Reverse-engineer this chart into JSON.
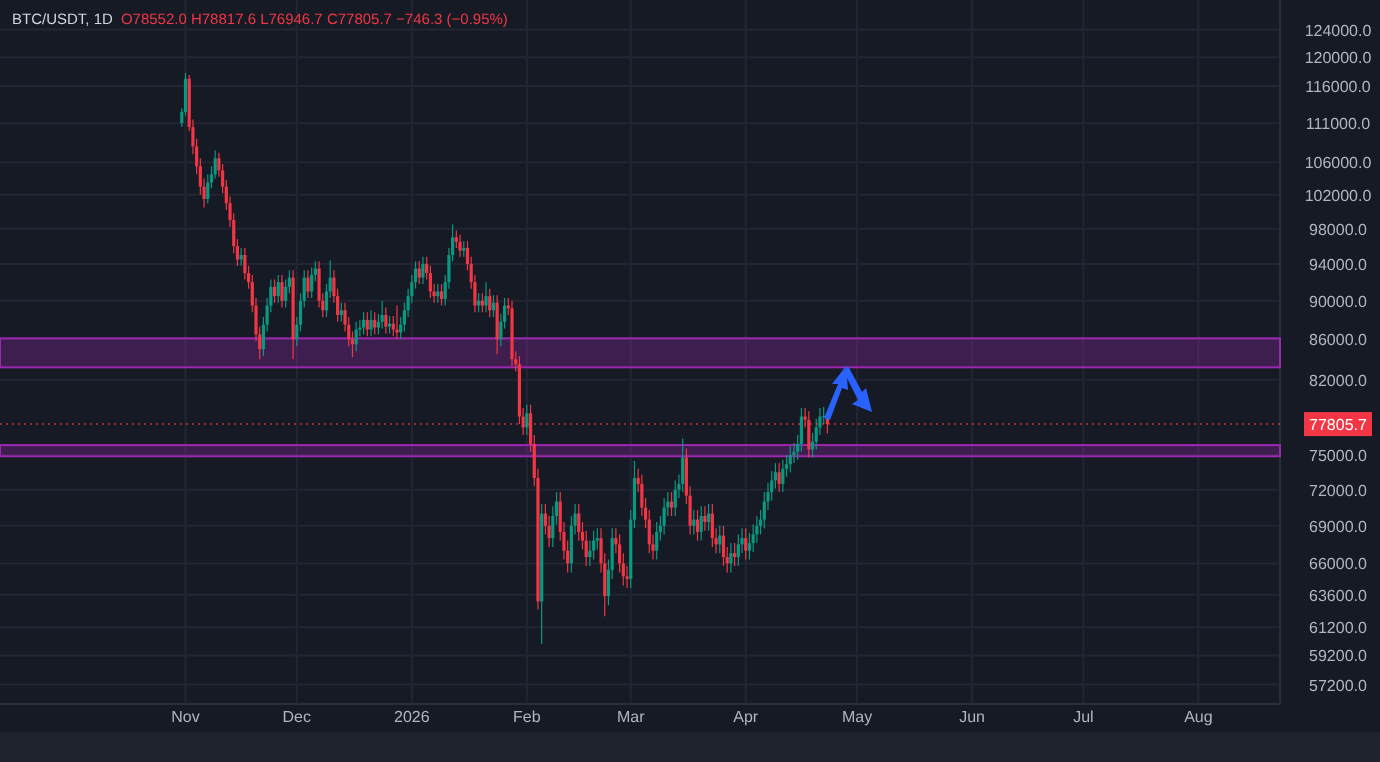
{
  "chart_data": {
    "type": "candlestick",
    "title": "BTC/USDT, 1D",
    "subtitle": "O78552.0 H78817.6 L76946.7 C77805.7 −746.3 (−0.95%)",
    "log": true,
    "grid": true,
    "xlim": [
      "2025-09-12",
      "2026-08-23"
    ],
    "xticks": [
      {
        "value": "2025-11-01",
        "label": "Nov"
      },
      {
        "value": "2025-12-01",
        "label": "Dec"
      },
      {
        "value": "2026-01-01",
        "label": "2026"
      },
      {
        "value": "2026-02-01",
        "label": "Feb"
      },
      {
        "value": "2026-03-01",
        "label": "Mar"
      },
      {
        "value": "2026-04-01",
        "label": "Apr"
      },
      {
        "value": "2026-05-01",
        "label": "May"
      },
      {
        "value": "2026-06-01",
        "label": "Jun"
      },
      {
        "value": "2026-07-01",
        "label": "Jul"
      },
      {
        "value": "2026-08-01",
        "label": "Aug"
      }
    ],
    "ylim": [
      55900,
      128400
    ],
    "yticks": [
      {
        "value": 124000,
        "label": "124000.0"
      },
      {
        "value": 120000,
        "label": "120000.0"
      },
      {
        "value": 116000,
        "label": "116000.0"
      },
      {
        "value": 111000,
        "label": "111000.0"
      },
      {
        "value": 106000,
        "label": "106000.0"
      },
      {
        "value": 102000,
        "label": "102000.0"
      },
      {
        "value": 98000,
        "label": "98000.0"
      },
      {
        "value": 94000,
        "label": "94000.0"
      },
      {
        "value": 90000,
        "label": "90000.0"
      },
      {
        "value": 86000,
        "label": "86000.0"
      },
      {
        "value": 82000,
        "label": "82000.0"
      },
      {
        "value": 75000,
        "label": "75000.0"
      },
      {
        "value": 72000,
        "label": "72000.0"
      },
      {
        "value": 69000,
        "label": "69000.0"
      },
      {
        "value": 66000,
        "label": "66000.0"
      },
      {
        "value": 63600,
        "label": "63600.0"
      },
      {
        "value": 61200,
        "label": "61200.0"
      },
      {
        "value": 59200,
        "label": "59200.0"
      },
      {
        "value": 57200,
        "label": "57200.0"
      }
    ],
    "bands": [
      {
        "axis": "y",
        "from": 83200,
        "to": 86100,
        "color": "#9c27b0"
      },
      {
        "axis": "y",
        "from": 74900,
        "to": 75900,
        "color": "#9c27b0"
      }
    ],
    "ref_lines": [
      {
        "axis": "y",
        "value": 77805.7,
        "label": "77805.7",
        "color": "#f23645",
        "line_style": "dotted"
      }
    ],
    "x": [
      "2025-10-31",
      "2025-11-01",
      "2025-11-02",
      "2025-11-03",
      "2025-11-04",
      "2025-11-05",
      "2025-11-06",
      "2025-11-07",
      "2025-11-08",
      "2025-11-09",
      "2025-11-10",
      "2025-11-11",
      "2025-11-12",
      "2025-11-13",
      "2025-11-14",
      "2025-11-15",
      "2025-11-16",
      "2025-11-17",
      "2025-11-18",
      "2025-11-19",
      "2025-11-20",
      "2025-11-21",
      "2025-11-22",
      "2025-11-23",
      "2025-11-24",
      "2025-11-25",
      "2025-11-26",
      "2025-11-27",
      "2025-11-28",
      "2025-11-29",
      "2025-11-30",
      "2025-12-01",
      "2025-12-02",
      "2025-12-03",
      "2025-12-04",
      "2025-12-05",
      "2025-12-06",
      "2025-12-07",
      "2025-12-08",
      "2025-12-09",
      "2025-12-10",
      "2025-12-11",
      "2025-12-12",
      "2025-12-13",
      "2025-12-14",
      "2025-12-15",
      "2025-12-16",
      "2025-12-17",
      "2025-12-18",
      "2025-12-19",
      "2025-12-20",
      "2025-12-21",
      "2025-12-22",
      "2025-12-23",
      "2025-12-24",
      "2025-12-25",
      "2025-12-26",
      "2025-12-27",
      "2025-12-28",
      "2025-12-29",
      "2025-12-30",
      "2025-12-31",
      "2026-01-01",
      "2026-01-02",
      "2026-01-03",
      "2026-01-04",
      "2026-01-05",
      "2026-01-06",
      "2026-01-07",
      "2026-01-08",
      "2026-01-09",
      "2026-01-10",
      "2026-01-11",
      "2026-01-12",
      "2026-01-13",
      "2026-01-14",
      "2026-01-15",
      "2026-01-16",
      "2026-01-17",
      "2026-01-18",
      "2026-01-19",
      "2026-01-20",
      "2026-01-21",
      "2026-01-22",
      "2026-01-23",
      "2026-01-24",
      "2026-01-25",
      "2026-01-26",
      "2026-01-27",
      "2026-01-28",
      "2026-01-29",
      "2026-01-30",
      "2026-01-31",
      "2026-02-01",
      "2026-02-02",
      "2026-02-03",
      "2026-02-04",
      "2026-02-05",
      "2026-02-06",
      "2026-02-07",
      "2026-02-08",
      "2026-02-09",
      "2026-02-10",
      "2026-02-11",
      "2026-02-12",
      "2026-02-13",
      "2026-02-14",
      "2026-02-15",
      "2026-02-16",
      "2026-02-17",
      "2026-02-18",
      "2026-02-19",
      "2026-02-20",
      "2026-02-21",
      "2026-02-22",
      "2026-02-23",
      "2026-02-24",
      "2026-02-25",
      "2026-02-26",
      "2026-02-27",
      "2026-02-28",
      "2026-03-01",
      "2026-03-02",
      "2026-03-03",
      "2026-03-04",
      "2026-03-05",
      "2026-03-06",
      "2026-03-07",
      "2026-03-08",
      "2026-03-09",
      "2026-03-10",
      "2026-03-11",
      "2026-03-12",
      "2026-03-13",
      "2026-03-14",
      "2026-03-15",
      "2026-03-16",
      "2026-03-17",
      "2026-03-18",
      "2026-03-19",
      "2026-03-20",
      "2026-03-21",
      "2026-03-22",
      "2026-03-23",
      "2026-03-24",
      "2026-03-25",
      "2026-03-26",
      "2026-03-27",
      "2026-03-28",
      "2026-03-29",
      "2026-03-30",
      "2026-03-31",
      "2026-04-01",
      "2026-04-02",
      "2026-04-03",
      "2026-04-04",
      "2026-04-05",
      "2026-04-06",
      "2026-04-07",
      "2026-04-08",
      "2026-04-09",
      "2026-04-10",
      "2026-04-11",
      "2026-04-12",
      "2026-04-13",
      "2026-04-14",
      "2026-04-15",
      "2026-04-16",
      "2026-04-17",
      "2026-04-18",
      "2026-04-19",
      "2026-04-20",
      "2026-04-21",
      "2026-04-22",
      "2026-04-23"
    ],
    "ohlc": [
      [
        111000,
        113000,
        110500,
        112500
      ],
      [
        112500,
        117800,
        112000,
        117000
      ],
      [
        117000,
        117500,
        110000,
        110500
      ],
      [
        110500,
        111500,
        107000,
        108000
      ],
      [
        108000,
        109000,
        104500,
        105500
      ],
      [
        105500,
        106500,
        102000,
        103000
      ],
      [
        103000,
        104000,
        100500,
        101500
      ],
      [
        101500,
        104500,
        101000,
        103500
      ],
      [
        103500,
        105500,
        102800,
        104500
      ],
      [
        104500,
        107500,
        104000,
        106500
      ],
      [
        106500,
        107200,
        104200,
        105000
      ],
      [
        105000,
        105800,
        102200,
        103000
      ],
      [
        103000,
        103800,
        100200,
        101000
      ],
      [
        101000,
        101800,
        98200,
        99000
      ],
      [
        99000,
        99800,
        95200,
        96000
      ],
      [
        96000,
        96800,
        93800,
        94500
      ],
      [
        94500,
        95800,
        93800,
        95000
      ],
      [
        95000,
        95800,
        92300,
        93000
      ],
      [
        93000,
        93800,
        91300,
        92000
      ],
      [
        92000,
        92800,
        88800,
        89500
      ],
      [
        89500,
        90300,
        85800,
        86500
      ],
      [
        86500,
        87300,
        84000,
        85000
      ],
      [
        85000,
        88300,
        84300,
        87500
      ],
      [
        87500,
        90300,
        86800,
        89500
      ],
      [
        89500,
        92300,
        88800,
        91500
      ],
      [
        91500,
        92300,
        89800,
        90500
      ],
      [
        90500,
        92800,
        89800,
        92000
      ],
      [
        92000,
        92800,
        89300,
        90000
      ],
      [
        90000,
        92300,
        89300,
        91500
      ],
      [
        91500,
        93300,
        90800,
        92500
      ],
      [
        92500,
        93300,
        84000,
        86000
      ],
      [
        86000,
        88300,
        85300,
        87500
      ],
      [
        87500,
        90800,
        86800,
        90000
      ],
      [
        90000,
        93300,
        89300,
        92500
      ],
      [
        92500,
        93300,
        90300,
        91000
      ],
      [
        91000,
        93600,
        90300,
        92800
      ],
      [
        92800,
        94300,
        92100,
        93500
      ],
      [
        93500,
        94300,
        89300,
        90000
      ],
      [
        90000,
        90800,
        88300,
        89000
      ],
      [
        89000,
        91800,
        88300,
        91000
      ],
      [
        91000,
        94400,
        90300,
        92500
      ],
      [
        92500,
        93300,
        89800,
        90500
      ],
      [
        90500,
        91300,
        87800,
        88500
      ],
      [
        88500,
        89800,
        87800,
        89000
      ],
      [
        89000,
        89800,
        86800,
        87500
      ],
      [
        87500,
        88300,
        85300,
        86000
      ],
      [
        86000,
        86800,
        84200,
        85500
      ],
      [
        85500,
        87800,
        84800,
        87000
      ],
      [
        87000,
        88000,
        86300,
        87200
      ],
      [
        87200,
        88800,
        86500,
        88000
      ],
      [
        88000,
        88800,
        86300,
        87000
      ],
      [
        87000,
        89000,
        86300,
        88000
      ],
      [
        88000,
        88800,
        86500,
        87200
      ],
      [
        87200,
        88600,
        86500,
        87800
      ],
      [
        87800,
        90000,
        87100,
        88500
      ],
      [
        88500,
        89300,
        86600,
        87300
      ],
      [
        87300,
        88400,
        86600,
        87600
      ],
      [
        87600,
        88400,
        86300,
        87000
      ],
      [
        87000,
        89500,
        86000,
        86700
      ],
      [
        86700,
        88300,
        86000,
        87500
      ],
      [
        87500,
        89800,
        86800,
        89000
      ],
      [
        89000,
        91300,
        88300,
        90500
      ],
      [
        90500,
        92800,
        89800,
        92000
      ],
      [
        92000,
        94300,
        91300,
        93500
      ],
      [
        93500,
        94300,
        91800,
        92500
      ],
      [
        92500,
        94800,
        91800,
        94000
      ],
      [
        94000,
        94800,
        92300,
        93000
      ],
      [
        93000,
        93800,
        90300,
        91000
      ],
      [
        91000,
        91800,
        89800,
        90500
      ],
      [
        90500,
        91800,
        89800,
        91000
      ],
      [
        91000,
        91800,
        89500,
        90200
      ],
      [
        90200,
        92800,
        89500,
        92000
      ],
      [
        92000,
        95800,
        91300,
        95000
      ],
      [
        95000,
        98500,
        94300,
        97000
      ],
      [
        97000,
        97800,
        95800,
        96500
      ],
      [
        96500,
        97300,
        94800,
        95500
      ],
      [
        95500,
        96600,
        94800,
        95800
      ],
      [
        95800,
        96600,
        93300,
        94000
      ],
      [
        94000,
        94800,
        91300,
        92000
      ],
      [
        92000,
        92800,
        88800,
        89500
      ],
      [
        89500,
        90800,
        88800,
        90000
      ],
      [
        90000,
        90800,
        88800,
        89500
      ],
      [
        89500,
        92000,
        88800,
        90500
      ],
      [
        90500,
        91300,
        88300,
        89000
      ],
      [
        89000,
        90600,
        88300,
        89800
      ],
      [
        89800,
        90600,
        84500,
        86000
      ],
      [
        86000,
        88600,
        85300,
        87800
      ],
      [
        87800,
        90300,
        87100,
        89500
      ],
      [
        89500,
        90300,
        88500,
        89200
      ],
      [
        89200,
        90000,
        83300,
        84000
      ],
      [
        84000,
        84800,
        82800,
        83500
      ],
      [
        83500,
        84300,
        77800,
        78500
      ],
      [
        78500,
        79300,
        76800,
        77500
      ],
      [
        77500,
        79600,
        76800,
        78800
      ],
      [
        78800,
        79600,
        75300,
        76000
      ],
      [
        76000,
        76800,
        72300,
        73000
      ],
      [
        73000,
        73800,
        62500,
        63100
      ],
      [
        63100,
        70800,
        60000,
        70000
      ],
      [
        70000,
        70800,
        68300,
        69000
      ],
      [
        69000,
        69800,
        67300,
        68000
      ],
      [
        68000,
        70600,
        67300,
        69800
      ],
      [
        69800,
        71800,
        69100,
        71000
      ],
      [
        71000,
        71800,
        67800,
        68500
      ],
      [
        68500,
        69300,
        66300,
        67000
      ],
      [
        67000,
        67800,
        65300,
        66000
      ],
      [
        66000,
        69800,
        65300,
        69000
      ],
      [
        69000,
        70800,
        68300,
        70000
      ],
      [
        70000,
        70800,
        67800,
        68500
      ],
      [
        68500,
        69300,
        67100,
        67800
      ],
      [
        67800,
        68600,
        65800,
        66500
      ],
      [
        66500,
        67800,
        65800,
        67000
      ],
      [
        67000,
        68600,
        66300,
        67800
      ],
      [
        67800,
        68800,
        67100,
        68000
      ],
      [
        68000,
        68800,
        65300,
        66000
      ],
      [
        66000,
        66800,
        62000,
        63500
      ],
      [
        63500,
        66300,
        62800,
        65500
      ],
      [
        65500,
        68800,
        64800,
        68000
      ],
      [
        68000,
        68800,
        66800,
        67500
      ],
      [
        67500,
        68300,
        65300,
        66000
      ],
      [
        66000,
        66800,
        64300,
        65000
      ],
      [
        65000,
        65800,
        64100,
        64800
      ],
      [
        64800,
        70300,
        64100,
        69500
      ],
      [
        69500,
        74500,
        68800,
        73000
      ],
      [
        73000,
        73800,
        71800,
        72500
      ],
      [
        72500,
        73300,
        69800,
        70500
      ],
      [
        70500,
        71300,
        68800,
        69500
      ],
      [
        69500,
        70300,
        66800,
        67500
      ],
      [
        67500,
        68300,
        66300,
        67000
      ],
      [
        67000,
        69300,
        66300,
        68500
      ],
      [
        68500,
        69800,
        67800,
        69000
      ],
      [
        69000,
        71300,
        68300,
        70500
      ],
      [
        70500,
        71800,
        69800,
        71000
      ],
      [
        71000,
        71800,
        69800,
        70500
      ],
      [
        70500,
        72800,
        69800,
        72000
      ],
      [
        72000,
        73300,
        71300,
        72500
      ],
      [
        72500,
        76500,
        71800,
        74800
      ],
      [
        74800,
        75600,
        70800,
        71500
      ],
      [
        71500,
        72300,
        68300,
        69000
      ],
      [
        69000,
        70300,
        68300,
        69500
      ],
      [
        69500,
        70300,
        67800,
        68500
      ],
      [
        68500,
        70600,
        67800,
        69800
      ],
      [
        69800,
        70600,
        68600,
        69300
      ],
      [
        69300,
        70800,
        68600,
        70000
      ],
      [
        70000,
        70800,
        67300,
        68000
      ],
      [
        68000,
        68800,
        66800,
        67500
      ],
      [
        67500,
        69000,
        66800,
        68200
      ],
      [
        68200,
        69000,
        65800,
        66500
      ],
      [
        66500,
        67300,
        65300,
        66000
      ],
      [
        66000,
        67600,
        65300,
        66800
      ],
      [
        66800,
        67600,
        65800,
        66500
      ],
      [
        66500,
        68300,
        65800,
        67500
      ],
      [
        67500,
        68800,
        66800,
        68000
      ],
      [
        68000,
        68800,
        66300,
        67000
      ],
      [
        67000,
        68400,
        66300,
        67600
      ],
      [
        67600,
        69100,
        66900,
        68300
      ],
      [
        68300,
        69800,
        67600,
        69000
      ],
      [
        69000,
        70300,
        68300,
        69500
      ],
      [
        69500,
        71800,
        68800,
        71000
      ],
      [
        71000,
        72600,
        70300,
        71800
      ],
      [
        71800,
        73600,
        71100,
        72800
      ],
      [
        72800,
        74300,
        72100,
        73500
      ],
      [
        73500,
        74300,
        71800,
        72500
      ],
      [
        72500,
        74600,
        71800,
        73800
      ],
      [
        73800,
        75000,
        73100,
        74200
      ],
      [
        74200,
        75800,
        73500,
        75000
      ],
      [
        75000,
        76100,
        74300,
        75300
      ],
      [
        75300,
        76800,
        74600,
        76000
      ],
      [
        76000,
        79300,
        75300,
        78500
      ],
      [
        78500,
        79300,
        77500,
        78200
      ],
      [
        78200,
        79000,
        74800,
        75500
      ],
      [
        75500,
        77000,
        74800,
        76200
      ],
      [
        76200,
        78300,
        75500,
        77500
      ],
      [
        77500,
        79300,
        76800,
        78500
      ],
      [
        78500,
        79400,
        77800,
        78552
      ],
      [
        78552,
        78817.6,
        76946.7,
        77805.7
      ]
    ]
  }
}
